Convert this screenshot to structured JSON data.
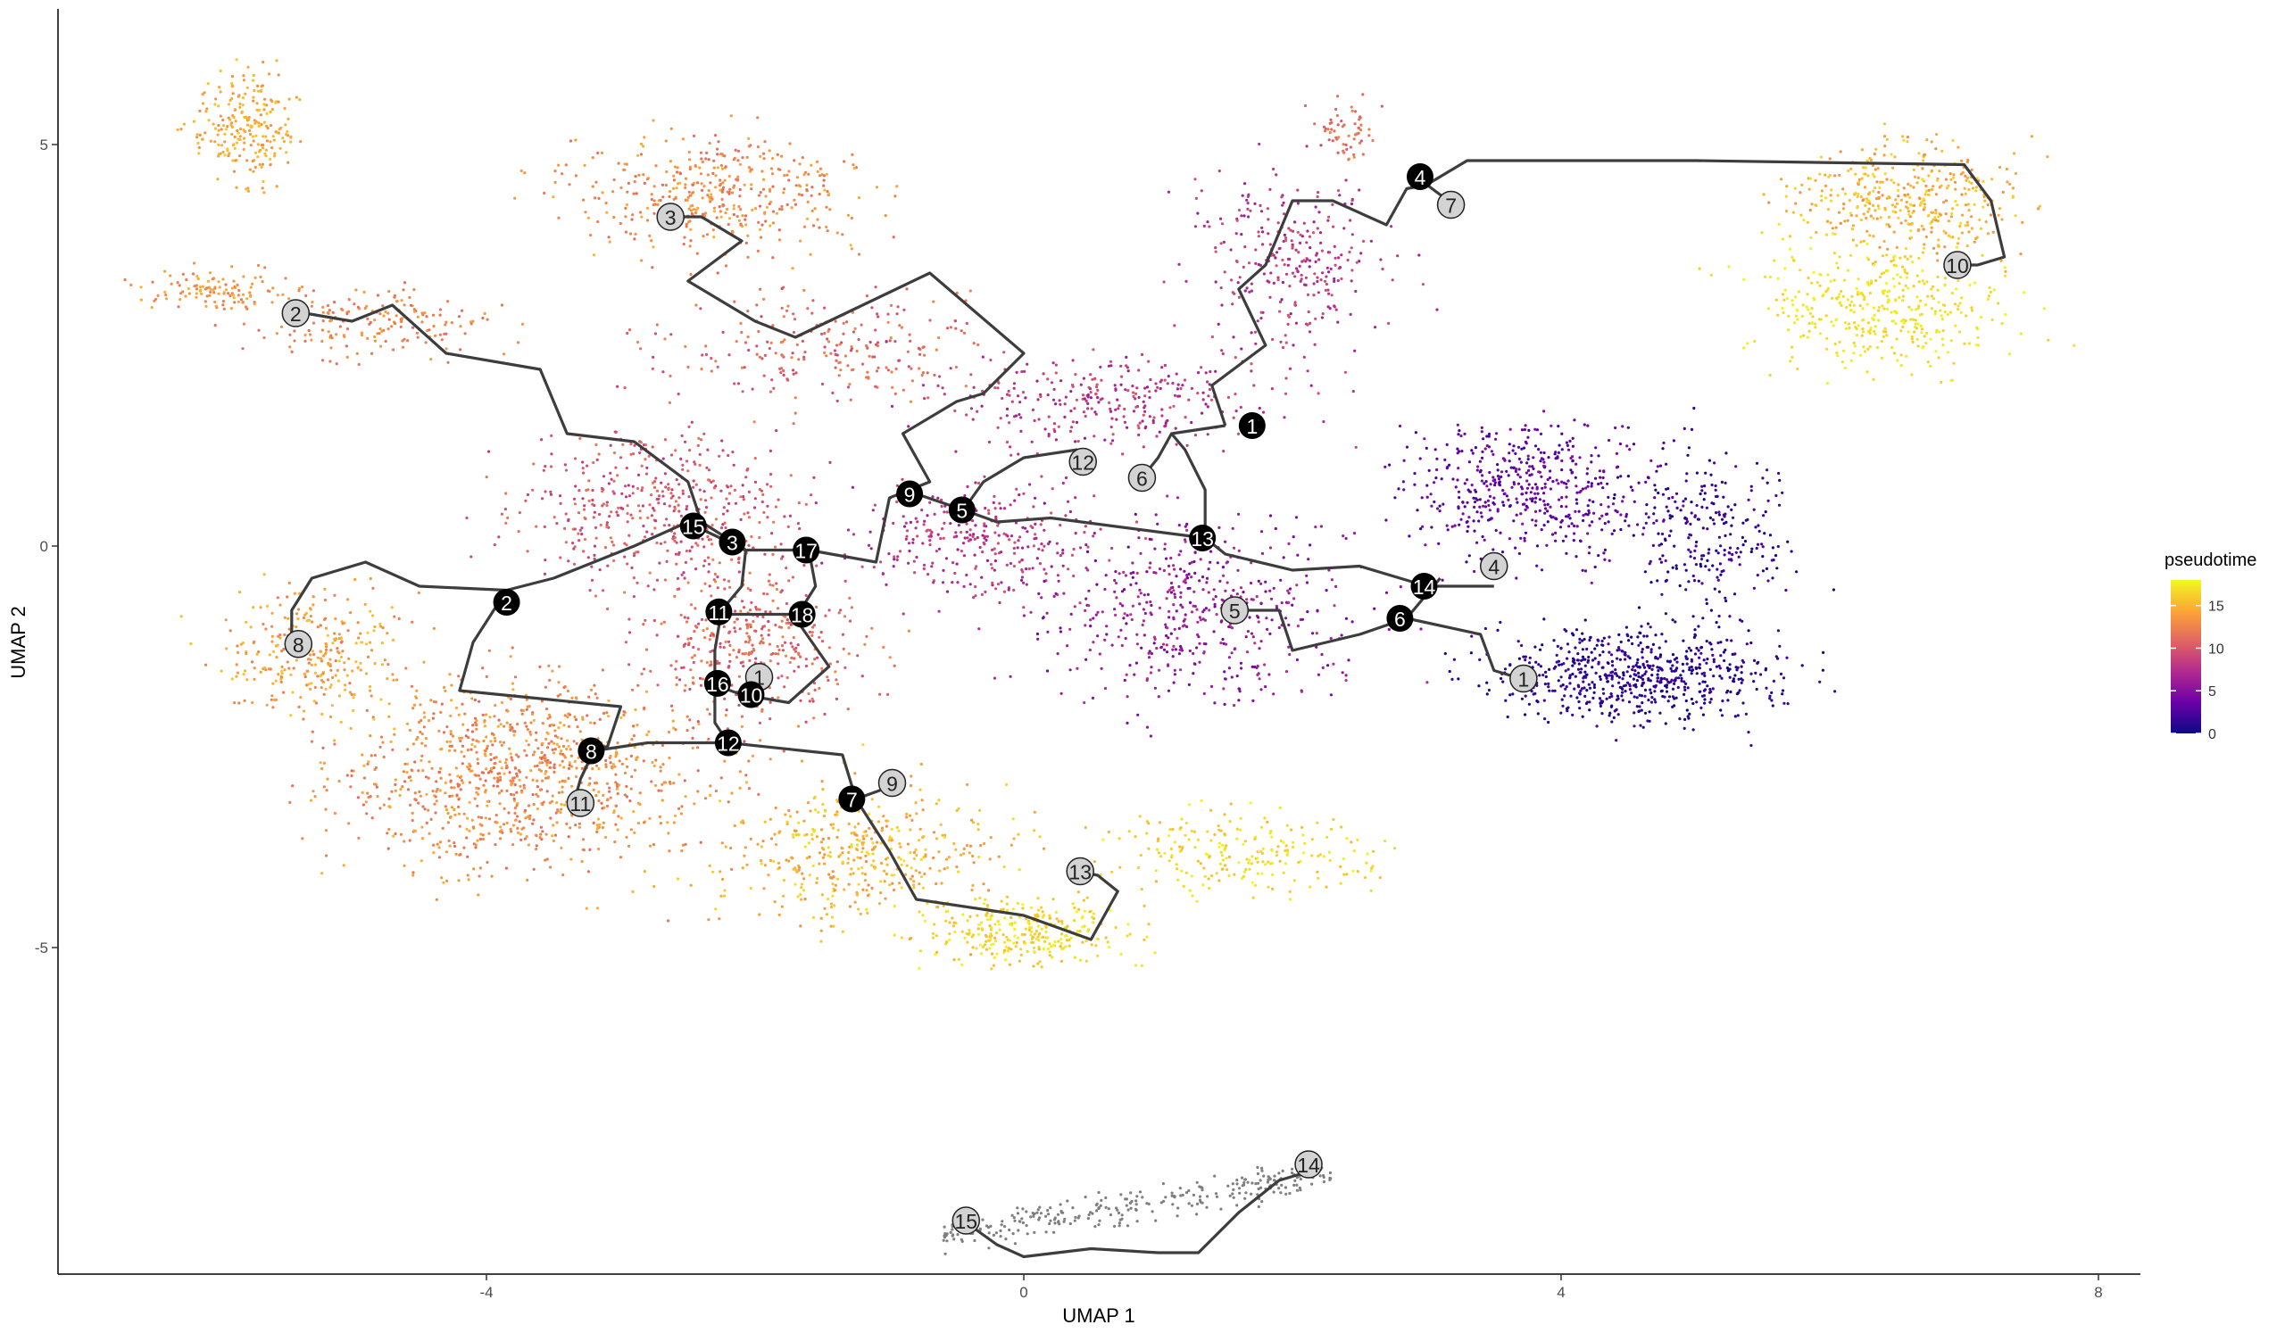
{
  "chart_data": {
    "type": "scatter",
    "title": "",
    "xlabel": "UMAP 1",
    "ylabel": "UMAP 2",
    "xlim": [
      -7.3,
      8.2
    ],
    "ylim": [
      -9.2,
      6.7
    ],
    "x_ticks": [
      -4,
      0,
      4,
      8
    ],
    "y_ticks": [
      -5,
      0,
      5
    ],
    "grid": false,
    "legend": {
      "title": "pseudotime",
      "type": "colorbar",
      "range": [
        0,
        18
      ],
      "ticks": [
        0,
        5,
        10,
        15
      ],
      "colors": [
        "#0d0887",
        "#6a00a8",
        "#b12a90",
        "#e16462",
        "#fca636",
        "#f0f921"
      ],
      "placement": "right"
    },
    "cell_clusters": [
      {
        "cx": -5.8,
        "cy": 5.2,
        "sx": 0.3,
        "sy": 0.6,
        "n": 230,
        "t": [
          13,
          16
        ]
      },
      {
        "cx": -6.0,
        "cy": 3.2,
        "sx": 0.45,
        "sy": 0.2,
        "n": 120,
        "t": [
          12,
          15
        ]
      },
      {
        "cx": -4.8,
        "cy": 2.8,
        "sx": 0.7,
        "sy": 0.4,
        "n": 180,
        "t": [
          11,
          14
        ]
      },
      {
        "cx": -2.3,
        "cy": 4.4,
        "sx": 0.9,
        "sy": 0.6,
        "n": 420,
        "t": [
          11,
          15
        ]
      },
      {
        "cx": -1.5,
        "cy": 2.5,
        "sx": 1.0,
        "sy": 0.6,
        "n": 250,
        "t": [
          9,
          13
        ]
      },
      {
        "cx": -2.7,
        "cy": 0.5,
        "sx": 0.9,
        "sy": 0.8,
        "n": 450,
        "t": [
          8,
          12
        ]
      },
      {
        "cx": -5.3,
        "cy": -1.3,
        "sx": 0.55,
        "sy": 0.65,
        "n": 300,
        "t": [
          12,
          16
        ]
      },
      {
        "cx": -3.7,
        "cy": -2.8,
        "sx": 1.2,
        "sy": 1.0,
        "n": 1000,
        "t": [
          11,
          15
        ]
      },
      {
        "cx": -2.0,
        "cy": -1.2,
        "sx": 0.7,
        "sy": 0.8,
        "n": 400,
        "t": [
          9,
          13
        ]
      },
      {
        "cx": -1.2,
        "cy": -3.8,
        "sx": 0.9,
        "sy": 0.7,
        "n": 420,
        "t": [
          13,
          17
        ]
      },
      {
        "cx": 0.0,
        "cy": -4.8,
        "sx": 0.7,
        "sy": 0.35,
        "n": 300,
        "t": [
          15,
          18
        ]
      },
      {
        "cx": 1.6,
        "cy": -3.8,
        "sx": 0.9,
        "sy": 0.4,
        "n": 220,
        "t": [
          15,
          18
        ]
      },
      {
        "cx": -0.3,
        "cy": 0.1,
        "sx": 0.8,
        "sy": 0.6,
        "n": 300,
        "t": [
          6,
          10
        ]
      },
      {
        "cx": 0.6,
        "cy": 1.8,
        "sx": 1.1,
        "sy": 0.5,
        "n": 300,
        "t": [
          6,
          10
        ]
      },
      {
        "cx": 1.3,
        "cy": -0.8,
        "sx": 1.0,
        "sy": 0.9,
        "n": 500,
        "t": [
          4,
          8
        ]
      },
      {
        "cx": 2.0,
        "cy": 3.5,
        "sx": 0.6,
        "sy": 1.0,
        "n": 300,
        "t": [
          6,
          10
        ]
      },
      {
        "cx": 2.4,
        "cy": 5.2,
        "sx": 0.2,
        "sy": 0.3,
        "n": 60,
        "t": [
          10,
          13
        ]
      },
      {
        "cx": 3.8,
        "cy": 0.7,
        "sx": 0.8,
        "sy": 0.7,
        "n": 500,
        "t": [
          2,
          5
        ]
      },
      {
        "cx": 4.6,
        "cy": -1.6,
        "sx": 0.9,
        "sy": 0.5,
        "n": 650,
        "t": [
          0,
          2.5
        ]
      },
      {
        "cx": 5.1,
        "cy": 0.2,
        "sx": 0.5,
        "sy": 0.9,
        "n": 250,
        "t": [
          0,
          3
        ]
      },
      {
        "cx": 6.6,
        "cy": 4.3,
        "sx": 0.7,
        "sy": 0.6,
        "n": 400,
        "t": [
          13,
          17
        ]
      },
      {
        "cx": 6.4,
        "cy": 3.0,
        "sx": 0.8,
        "sy": 0.7,
        "n": 400,
        "t": [
          16,
          18
        ]
      }
    ],
    "isolated_cluster": {
      "x_range": [
        -0.6,
        2.3
      ],
      "y_range": [
        -8.9,
        -7.6
      ],
      "n": 280,
      "color": "#7f7f7f"
    },
    "trajectory": [
      [
        [
          -5.35,
          2.9
        ],
        [
          -5.0,
          2.8
        ],
        [
          -4.7,
          3.0
        ],
        [
          -4.3,
          2.4
        ],
        [
          -3.6,
          2.2
        ],
        [
          -3.4,
          1.4
        ],
        [
          -2.9,
          1.3
        ],
        [
          -2.5,
          0.8
        ],
        [
          -2.4,
          0.3
        ],
        [
          -2.07,
          -0.05
        ],
        [
          -2.1,
          -0.5
        ],
        [
          -2.25,
          -0.8
        ],
        [
          -2.3,
          -1.3
        ],
        [
          -2.3,
          -1.7
        ],
        [
          -2.27,
          -1.75
        ],
        [
          -2.1,
          -1.85
        ],
        [
          -1.75,
          -1.95
        ],
        [
          -1.45,
          -1.5
        ],
        [
          -1.7,
          -0.9
        ],
        [
          -1.55,
          -0.5
        ],
        [
          -1.6,
          -0.05
        ],
        [
          -1.1,
          -0.2
        ],
        [
          -1.0,
          0.6
        ],
        [
          -0.7,
          0.8
        ],
        [
          -0.9,
          1.4
        ],
        [
          -0.5,
          1.8
        ],
        [
          -0.3,
          1.9
        ],
        [
          0.0,
          2.4
        ],
        [
          -0.7,
          3.4
        ],
        [
          -1.7,
          2.6
        ],
        [
          -2.0,
          2.8
        ],
        [
          -2.5,
          3.3
        ],
        [
          -2.1,
          3.8
        ],
        [
          -2.4,
          4.1
        ],
        [
          -2.65,
          4.1
        ]
      ],
      [
        [
          -2.07,
          -0.05
        ],
        [
          -2.45,
          0.25
        ]
      ],
      [
        [
          -2.3,
          -0.85
        ],
        [
          -1.65,
          -0.85
        ]
      ],
      [
        [
          -1.6,
          -0.05
        ],
        [
          -2.07,
          -0.05
        ]
      ],
      [
        [
          -0.8,
          0.65
        ],
        [
          -0.45,
          0.45
        ],
        [
          -0.2,
          0.3
        ],
        [
          0.2,
          0.35
        ],
        [
          1.35,
          0.1
        ],
        [
          1.5,
          -0.1
        ],
        [
          2.0,
          -0.3
        ],
        [
          2.5,
          -0.25
        ],
        [
          2.9,
          -0.45
        ],
        [
          3.05,
          -0.5
        ],
        [
          3.5,
          -0.5
        ]
      ],
      [
        [
          -0.45,
          0.45
        ],
        [
          -0.3,
          0.8
        ],
        [
          0.0,
          1.1
        ],
        [
          0.4,
          1.2
        ]
      ],
      [
        [
          1.35,
          0.1
        ],
        [
          1.35,
          0.7
        ],
        [
          1.2,
          1.2
        ],
        [
          1.1,
          1.4
        ],
        [
          1.5,
          1.5
        ]
      ],
      [
        [
          1.1,
          1.4
        ],
        [
          1.0,
          1.1
        ],
        [
          0.88,
          0.85
        ]
      ],
      [
        [
          1.5,
          1.5
        ],
        [
          1.4,
          2.0
        ],
        [
          1.8,
          2.5
        ],
        [
          1.6,
          3.2
        ],
        [
          1.8,
          3.5
        ],
        [
          2.0,
          4.3
        ],
        [
          2.3,
          4.3
        ],
        [
          2.7,
          4.0
        ],
        [
          2.85,
          4.45
        ],
        [
          3.0,
          4.5
        ],
        [
          3.3,
          4.8
        ],
        [
          5.0,
          4.8
        ],
        [
          7.0,
          4.75
        ],
        [
          7.2,
          4.3
        ],
        [
          7.3,
          3.6
        ],
        [
          7.1,
          3.5
        ],
        [
          6.95,
          3.5
        ]
      ],
      [
        [
          3.0,
          4.5
        ],
        [
          3.2,
          4.25
        ]
      ],
      [
        [
          1.55,
          -0.8
        ],
        [
          1.9,
          -0.8
        ],
        [
          2.0,
          -1.3
        ],
        [
          2.5,
          -1.1
        ],
        [
          2.85,
          -0.9
        ],
        [
          3.1,
          -0.4
        ]
      ],
      [
        [
          2.85,
          -0.9
        ],
        [
          3.4,
          -1.1
        ],
        [
          3.5,
          -1.55
        ],
        [
          3.7,
          -1.65
        ]
      ],
      [
        [
          -3.85,
          -0.55
        ],
        [
          -4.5,
          -0.5
        ],
        [
          -4.9,
          -0.2
        ],
        [
          -5.3,
          -0.4
        ],
        [
          -5.45,
          -0.8
        ],
        [
          -5.45,
          -1.2
        ]
      ],
      [
        [
          -3.85,
          -0.55
        ],
        [
          -3.5,
          -0.4
        ],
        [
          -3.2,
          -0.2
        ],
        [
          -2.9,
          0.0
        ],
        [
          -2.5,
          0.3
        ]
      ],
      [
        [
          -3.85,
          -0.55
        ],
        [
          -4.1,
          -1.2
        ],
        [
          -4.2,
          -1.8
        ],
        [
          -3.6,
          -1.9
        ],
        [
          -3.0,
          -2.0
        ],
        [
          -3.1,
          -2.5
        ],
        [
          -3.2,
          -2.5
        ]
      ],
      [
        [
          -3.2,
          -2.55
        ],
        [
          -3.3,
          -2.9
        ],
        [
          -3.35,
          -3.2
        ]
      ],
      [
        [
          -3.2,
          -2.55
        ],
        [
          -2.8,
          -2.45
        ],
        [
          -2.2,
          -2.45
        ],
        [
          -1.35,
          -2.6
        ],
        [
          -1.25,
          -3.15
        ],
        [
          -1.0,
          -3.0
        ]
      ],
      [
        [
          -1.25,
          -3.15
        ],
        [
          -1.0,
          -3.8
        ],
        [
          -0.8,
          -4.4
        ],
        [
          0.0,
          -4.6
        ],
        [
          0.5,
          -4.9
        ],
        [
          0.7,
          -4.3
        ],
        [
          0.55,
          -4.1
        ],
        [
          0.4,
          -4.05
        ]
      ],
      [
        [
          -2.3,
          -1.7
        ],
        [
          -2.3,
          -2.2
        ],
        [
          -2.2,
          -2.45
        ]
      ],
      [
        [
          -0.45,
          -8.4
        ],
        [
          -0.2,
          -8.7
        ],
        [
          0.0,
          -8.85
        ],
        [
          0.5,
          -8.75
        ],
        [
          1.0,
          -8.8
        ],
        [
          1.3,
          -8.8
        ],
        [
          1.6,
          -8.3
        ],
        [
          1.9,
          -7.9
        ],
        [
          2.1,
          -7.8
        ]
      ]
    ],
    "branch_nodes": [
      {
        "label": "1",
        "x": 1.7,
        "y": 1.5
      },
      {
        "label": "2",
        "x": -3.85,
        "y": -0.7
      },
      {
        "label": "3",
        "x": -2.17,
        "y": 0.05
      },
      {
        "label": "4",
        "x": 2.95,
        "y": 4.6
      },
      {
        "label": "5",
        "x": -0.46,
        "y": 0.45
      },
      {
        "label": "6",
        "x": 2.8,
        "y": -0.9
      },
      {
        "label": "7",
        "x": -1.28,
        "y": -3.15
      },
      {
        "label": "8",
        "x": -3.22,
        "y": -2.55
      },
      {
        "label": "9",
        "x": -0.85,
        "y": 0.65
      },
      {
        "label": "10",
        "x": -2.03,
        "y": -1.85
      },
      {
        "label": "11",
        "x": -2.27,
        "y": -0.82
      },
      {
        "label": "12",
        "x": -2.2,
        "y": -2.45
      },
      {
        "label": "13",
        "x": 1.33,
        "y": 0.1
      },
      {
        "label": "14",
        "x": 2.98,
        "y": -0.5
      },
      {
        "label": "15",
        "x": -2.46,
        "y": 0.25
      },
      {
        "label": "16",
        "x": -2.28,
        "y": -1.71
      },
      {
        "label": "17",
        "x": -1.62,
        "y": -0.05
      },
      {
        "label": "18",
        "x": -1.65,
        "y": -0.85
      }
    ],
    "leaf_nodes": [
      {
        "label": "1",
        "x": -1.97,
        "y": -1.63
      },
      {
        "label": "1",
        "x": 3.72,
        "y": -1.65
      },
      {
        "label": "2",
        "x": -5.42,
        "y": 2.9
      },
      {
        "label": "3",
        "x": -2.63,
        "y": 4.1
      },
      {
        "label": "4",
        "x": 3.5,
        "y": -0.25
      },
      {
        "label": "5",
        "x": 1.57,
        "y": -0.8
      },
      {
        "label": "6",
        "x": 0.88,
        "y": 0.85
      },
      {
        "label": "7",
        "x": 3.18,
        "y": 4.25
      },
      {
        "label": "8",
        "x": -5.4,
        "y": -1.22
      },
      {
        "label": "9",
        "x": -0.98,
        "y": -2.95
      },
      {
        "label": "10",
        "x": 6.95,
        "y": 3.5
      },
      {
        "label": "11",
        "x": -3.3,
        "y": -3.2
      },
      {
        "label": "12",
        "x": 0.44,
        "y": 1.05
      },
      {
        "label": "13",
        "x": 0.42,
        "y": -4.05
      },
      {
        "label": "14",
        "x": 2.12,
        "y": -7.7
      },
      {
        "label": "15",
        "x": -0.43,
        "y": -8.4
      }
    ]
  }
}
